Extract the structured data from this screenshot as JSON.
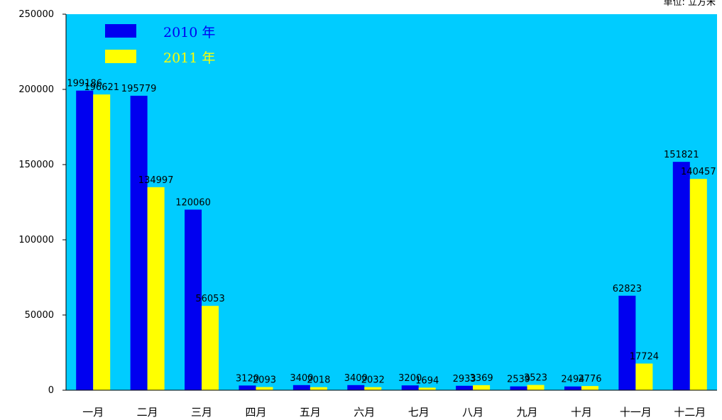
{
  "chart_data": {
    "type": "bar",
    "unit_label": "单位: 立方米",
    "categories": [
      "一月",
      "二月",
      "三月",
      "四月",
      "五月",
      "六月",
      "七月",
      "八月",
      "九月",
      "十月",
      "十一月",
      "十二月"
    ],
    "series": [
      {
        "name": "2010 年",
        "color": "#0000f0",
        "values": [
          199186,
          195779,
          120060,
          3120,
          3400,
          3400,
          3200,
          2933,
          2539,
          2494,
          62823,
          151821
        ],
        "labels": [
          "199186",
          "195779",
          "120060",
          "3120",
          "3400",
          "3400",
          "3200",
          "2933",
          "2539",
          "2494",
          "62823",
          "151821"
        ]
      },
      {
        "name": "2011 年",
        "color": "#ffff00",
        "values": [
          196621,
          134997,
          56053,
          2093,
          2018,
          2032,
          1694,
          3369,
          3523,
          2776,
          17724,
          140457
        ],
        "labels": [
          "196621",
          "134997",
          "56053",
          "2093",
          "2018",
          "2032",
          "1694",
          "3369",
          "3523",
          "2776",
          "17724",
          "140457"
        ]
      }
    ],
    "ylim": [
      0,
      250000
    ],
    "yticks": [
      0,
      50000,
      100000,
      150000,
      200000,
      250000
    ],
    "ytick_labels": [
      "0",
      "50000",
      "100000",
      "150000",
      "200000",
      "250000"
    ],
    "plot_background": "#00ccff",
    "grid": false,
    "legend_position": "top-left"
  }
}
